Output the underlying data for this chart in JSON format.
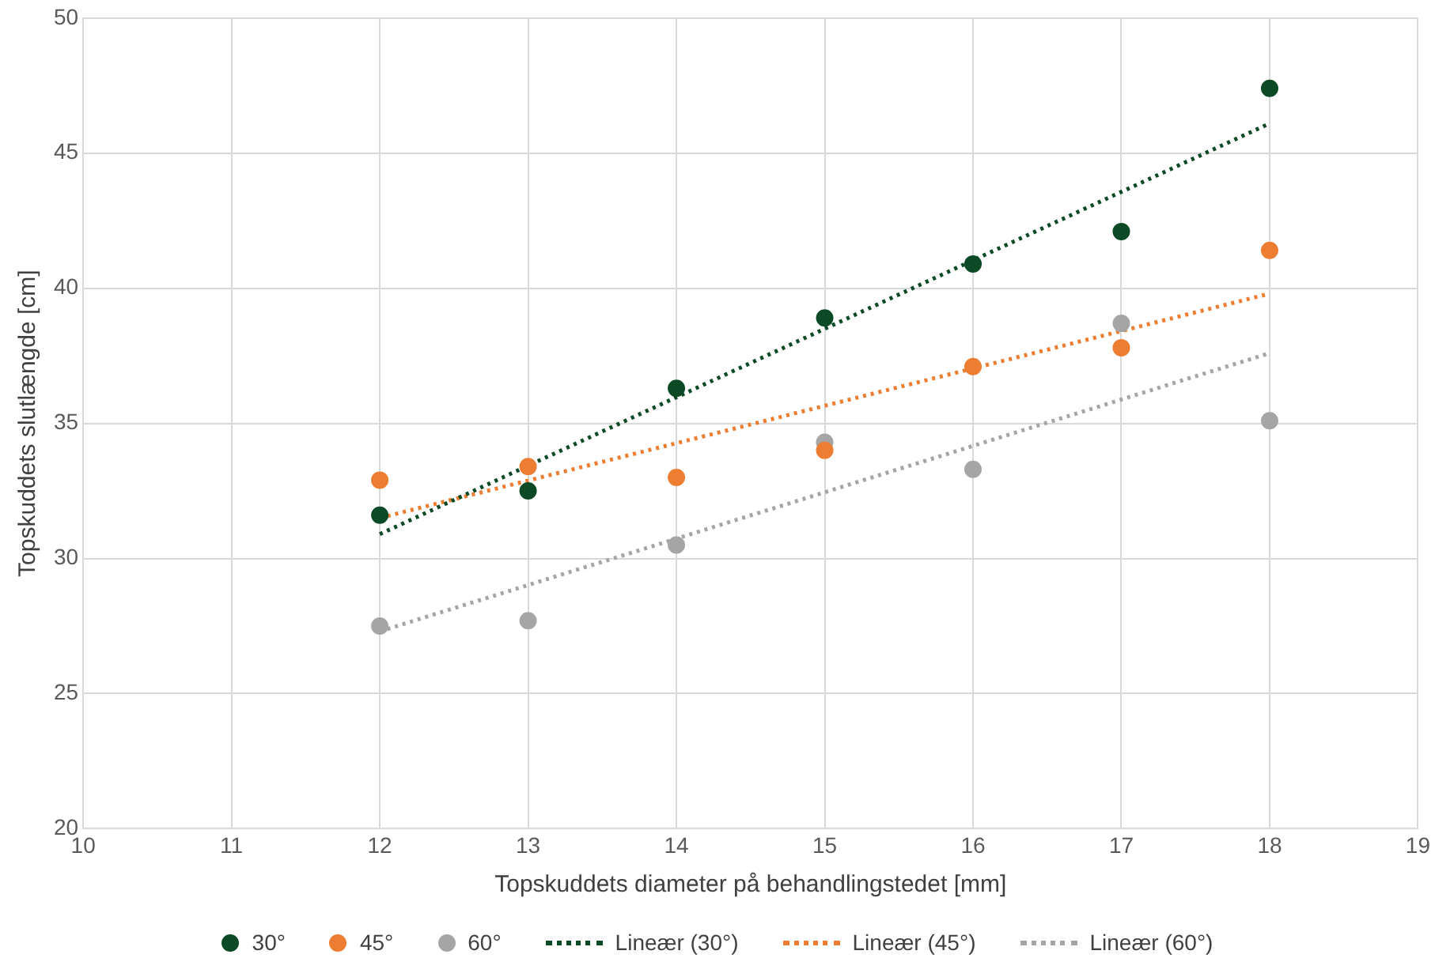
{
  "chart_data": {
    "type": "scatter",
    "xlabel": "Topskuddets diameter på behandlingstedet [mm]",
    "ylabel": "Topskuddets slutlængde [cm]",
    "xlim": [
      10,
      19
    ],
    "xticks": [
      10,
      11,
      12,
      13,
      14,
      15,
      16,
      17,
      18,
      19
    ],
    "ylim": [
      20,
      50
    ],
    "yticks": [
      20,
      25,
      30,
      35,
      40,
      45,
      50
    ],
    "grid": true,
    "legend": "bottom",
    "marker": "circle",
    "series": [
      {
        "name": "30°",
        "color": "#0b4a24",
        "x": [
          12,
          13,
          14,
          15,
          16,
          17,
          18
        ],
        "values": [
          31.6,
          32.5,
          36.3,
          38.9,
          40.9,
          42.1,
          47.4
        ]
      },
      {
        "name": "45°",
        "color": "#ed7d31",
        "x": [
          12,
          13,
          14,
          15,
          16,
          17,
          18
        ],
        "values": [
          32.9,
          33.4,
          33.0,
          34.0,
          37.1,
          37.8,
          41.4
        ]
      },
      {
        "name": "60°",
        "color": "#a5a5a5",
        "x": [
          12,
          13,
          14,
          15,
          16,
          17,
          18
        ],
        "values": [
          27.5,
          27.7,
          30.5,
          34.3,
          33.3,
          38.7,
          35.1
        ]
      },
      {
        "name": "Lineær (30°)",
        "type": "line",
        "line_style": "dotted",
        "marker": "none",
        "color": "#0b4a24",
        "x": [
          12,
          18
        ],
        "values": [
          30.9,
          46.1
        ]
      },
      {
        "name": "Lineær (45°)",
        "type": "line",
        "line_style": "dotted",
        "marker": "none",
        "color": "#ed7d31",
        "x": [
          12,
          18
        ],
        "values": [
          31.5,
          39.8
        ]
      },
      {
        "name": "Lineær (60°)",
        "type": "line",
        "line_style": "dotted",
        "marker": "none",
        "color": "#a5a5a5",
        "x": [
          12,
          18
        ],
        "values": [
          27.3,
          37.6
        ]
      }
    ]
  }
}
